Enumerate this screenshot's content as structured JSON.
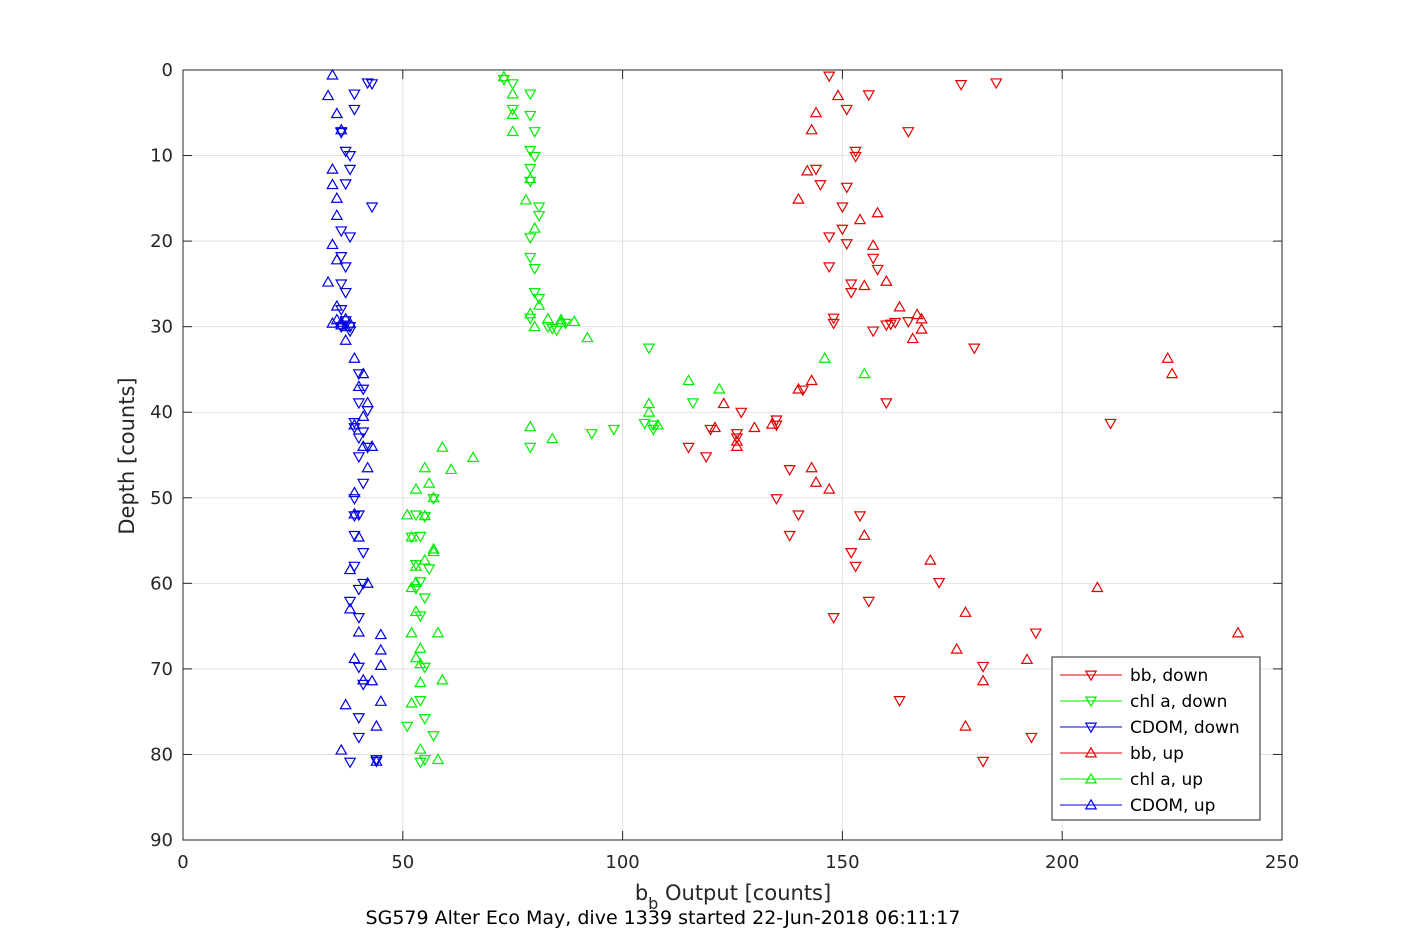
{
  "chart_data": {
    "type": "scatter",
    "xlabel": "b",
    "xlabel_sub": "b",
    "xlabel_rest": " Output [counts]",
    "ylabel": "Depth [counts]",
    "caption": "SG579 Alter Eco May, dive 1339 started 22-Jun-2018 06:11:17",
    "xlim": [
      0,
      250
    ],
    "ylim": [
      0,
      90
    ],
    "y_reversed": true,
    "grid": true,
    "legend_position": "bottom-right",
    "xticks": [
      "0",
      "50",
      "100",
      "150",
      "200",
      "250"
    ],
    "yticks": [
      "0",
      "10",
      "20",
      "30",
      "40",
      "50",
      "60",
      "70",
      "80",
      "90"
    ],
    "series": [
      {
        "name": "bb, down",
        "color": "#e60000",
        "marker": "triangle-down",
        "points": [
          [
            147,
            0.7
          ],
          [
            185,
            1.5
          ],
          [
            177,
            1.7
          ],
          [
            156,
            2.9
          ],
          [
            151,
            4.6
          ],
          [
            165,
            7.2
          ],
          [
            153,
            9.5
          ],
          [
            153,
            10.1
          ],
          [
            144,
            11.6
          ],
          [
            145,
            13.4
          ],
          [
            151,
            13.7
          ],
          [
            150,
            16
          ],
          [
            150,
            18.6
          ],
          [
            147,
            19.5
          ],
          [
            151,
            20.3
          ],
          [
            157,
            22
          ],
          [
            158,
            23.3
          ],
          [
            147,
            23
          ],
          [
            152,
            25
          ],
          [
            152,
            26
          ],
          [
            148,
            29
          ],
          [
            148,
            29.6
          ],
          [
            160,
            29.8
          ],
          [
            161,
            29.7
          ],
          [
            162,
            29.5
          ],
          [
            165,
            29.4
          ],
          [
            157,
            30.5
          ],
          [
            180,
            32.5
          ],
          [
            160,
            38.9
          ],
          [
            141,
            37.4
          ],
          [
            135,
            40.9
          ],
          [
            135,
            41.5
          ],
          [
            127,
            40
          ],
          [
            120,
            42
          ],
          [
            126,
            42.5
          ],
          [
            126,
            43
          ],
          [
            115,
            44.1
          ],
          [
            119,
            45.2
          ],
          [
            138,
            46.7
          ],
          [
            135,
            50.1
          ],
          [
            140,
            52
          ],
          [
            138,
            54.4
          ],
          [
            152,
            56.4
          ],
          [
            153,
            58
          ],
          [
            156,
            62.1
          ],
          [
            148,
            64
          ],
          [
            182,
            69.7
          ],
          [
            163,
            73.7
          ],
          [
            193,
            78
          ],
          [
            182,
            80.8
          ],
          [
            154,
            52.1
          ],
          [
            172,
            59.9
          ],
          [
            194,
            65.8
          ],
          [
            211,
            41.3
          ]
        ]
      },
      {
        "name": "chl a, down",
        "color": "#00ee00",
        "marker": "triangle-down",
        "points": [
          [
            73,
            1.1
          ],
          [
            75,
            1.6
          ],
          [
            79,
            2.8
          ],
          [
            75,
            4.6
          ],
          [
            79,
            5.3
          ],
          [
            80,
            7.2
          ],
          [
            79,
            9.4
          ],
          [
            80,
            10.1
          ],
          [
            79,
            11.5
          ],
          [
            79,
            13
          ],
          [
            81,
            16
          ],
          [
            81,
            17
          ],
          [
            79,
            19.6
          ],
          [
            79,
            21.9
          ],
          [
            80,
            23.2
          ],
          [
            80,
            26
          ],
          [
            81,
            26.7
          ],
          [
            79,
            29
          ],
          [
            83,
            30
          ],
          [
            84,
            30.2
          ],
          [
            85,
            30.4
          ],
          [
            87,
            29.6
          ],
          [
            106,
            32.5
          ],
          [
            116,
            38.9
          ],
          [
            105,
            41.3
          ],
          [
            107,
            41.5
          ],
          [
            107,
            42
          ],
          [
            98,
            42
          ],
          [
            93,
            42.5
          ],
          [
            79,
            44.1
          ],
          [
            53,
            52
          ],
          [
            55,
            52.2
          ],
          [
            54,
            54.5
          ],
          [
            53,
            57.8
          ],
          [
            54,
            59.8
          ],
          [
            53,
            60.6
          ],
          [
            55,
            61.7
          ],
          [
            54,
            63.8
          ],
          [
            55,
            69.8
          ],
          [
            54,
            73.7
          ],
          [
            55,
            75.8
          ],
          [
            57,
            77.8
          ],
          [
            54,
            80.9
          ],
          [
            55,
            80.6
          ],
          [
            51,
            76.7
          ],
          [
            57,
            50.1
          ],
          [
            52,
            54.6
          ],
          [
            56,
            58.3
          ]
        ]
      },
      {
        "name": "CDOM, down",
        "color": "#0000e6",
        "marker": "triangle-down",
        "points": [
          [
            42,
            1.5
          ],
          [
            43,
            1.6
          ],
          [
            39,
            2.8
          ],
          [
            39,
            4.6
          ],
          [
            36,
            7.2
          ],
          [
            36,
            7.3
          ],
          [
            37,
            9.5
          ],
          [
            38,
            10
          ],
          [
            38,
            11.6
          ],
          [
            37,
            13.3
          ],
          [
            43,
            16
          ],
          [
            36,
            18.8
          ],
          [
            38,
            19.5
          ],
          [
            36,
            21.8
          ],
          [
            37,
            23
          ],
          [
            36,
            25
          ],
          [
            37,
            26
          ],
          [
            36,
            28
          ],
          [
            37,
            29.3
          ],
          [
            37,
            29.8
          ],
          [
            36,
            30
          ],
          [
            38,
            30.5
          ],
          [
            40,
            35.5
          ],
          [
            41,
            37.3
          ],
          [
            40,
            38.9
          ],
          [
            42,
            39.8
          ],
          [
            39,
            41.2
          ],
          [
            39,
            41.8
          ],
          [
            41,
            42.3
          ],
          [
            40,
            43
          ],
          [
            42,
            44.1
          ],
          [
            40,
            45.2
          ],
          [
            41,
            48.3
          ],
          [
            39,
            50.1
          ],
          [
            39,
            52.1
          ],
          [
            41,
            56.4
          ],
          [
            39,
            58
          ],
          [
            41,
            60
          ],
          [
            40,
            60.7
          ],
          [
            38,
            62.1
          ],
          [
            40,
            64
          ],
          [
            40,
            69.8
          ],
          [
            41,
            71.8
          ],
          [
            40,
            75.7
          ],
          [
            40,
            78
          ],
          [
            44,
            80.8
          ],
          [
            44,
            80.6
          ],
          [
            38,
            80.9
          ],
          [
            39,
            54.4
          ],
          [
            40,
            52
          ],
          [
            38,
            30
          ]
        ]
      },
      {
        "name": "bb, up",
        "color": "#e60000",
        "marker": "triangle-up",
        "points": [
          [
            149,
            3
          ],
          [
            144,
            5
          ],
          [
            143,
            7
          ],
          [
            142,
            11.8
          ],
          [
            140,
            15.1
          ],
          [
            158,
            16.7
          ],
          [
            154,
            17.5
          ],
          [
            157,
            20.5
          ],
          [
            160,
            24.7
          ],
          [
            155,
            25.2
          ],
          [
            163,
            27.7
          ],
          [
            167,
            28.6
          ],
          [
            168,
            29.1
          ],
          [
            168,
            30.3
          ],
          [
            166,
            31.4
          ],
          [
            224,
            33.7
          ],
          [
            225,
            35.5
          ],
          [
            143,
            36.3
          ],
          [
            140,
            37.3
          ],
          [
            123,
            39
          ],
          [
            121,
            41.8
          ],
          [
            130,
            41.8
          ],
          [
            134,
            41.4
          ],
          [
            126,
            43.4
          ],
          [
            126,
            44
          ],
          [
            143,
            46.5
          ],
          [
            144,
            48.2
          ],
          [
            147,
            49
          ],
          [
            155,
            54.4
          ],
          [
            170,
            57.3
          ],
          [
            178,
            63.4
          ],
          [
            176,
            67.7
          ],
          [
            192,
            68.9
          ],
          [
            182,
            71.4
          ],
          [
            178,
            76.7
          ],
          [
            208,
            60.5
          ],
          [
            240,
            65.8
          ]
        ]
      },
      {
        "name": "chl a, up",
        "color": "#00ee00",
        "marker": "triangle-up",
        "points": [
          [
            73,
            0.8
          ],
          [
            75,
            2.8
          ],
          [
            75,
            5.2
          ],
          [
            75,
            7.2
          ],
          [
            79,
            12.7
          ],
          [
            78,
            15.2
          ],
          [
            80,
            18.5
          ],
          [
            81,
            27.5
          ],
          [
            79,
            28.5
          ],
          [
            80,
            30
          ],
          [
            83,
            29.1
          ],
          [
            86,
            29.2
          ],
          [
            89,
            29.4
          ],
          [
            92,
            31.3
          ],
          [
            86,
            29.5
          ],
          [
            146,
            33.7
          ],
          [
            155,
            35.5
          ],
          [
            115,
            36.3
          ],
          [
            122,
            37.3
          ],
          [
            106,
            39
          ],
          [
            106,
            40
          ],
          [
            108,
            41.5
          ],
          [
            79,
            41.7
          ],
          [
            84,
            43.1
          ],
          [
            59,
            44.1
          ],
          [
            66,
            45.3
          ],
          [
            55,
            46.5
          ],
          [
            61,
            46.7
          ],
          [
            56,
            48.3
          ],
          [
            53,
            49
          ],
          [
            57,
            50
          ],
          [
            51,
            52
          ],
          [
            55,
            52.1
          ],
          [
            52,
            54.6
          ],
          [
            57,
            56.3
          ],
          [
            55,
            57.3
          ],
          [
            53,
            58
          ],
          [
            53,
            59.9
          ],
          [
            52,
            60.5
          ],
          [
            53,
            63.3
          ],
          [
            58,
            65.8
          ],
          [
            52,
            65.8
          ],
          [
            54,
            67.6
          ],
          [
            53,
            68.7
          ],
          [
            54,
            69.4
          ],
          [
            54,
            71.6
          ],
          [
            59,
            71.3
          ],
          [
            52,
            74
          ],
          [
            54,
            79.4
          ],
          [
            58,
            80.6
          ],
          [
            57,
            56
          ]
        ]
      },
      {
        "name": "CDOM, up",
        "color": "#0000e6",
        "marker": "triangle-up",
        "points": [
          [
            34,
            0.6
          ],
          [
            33,
            3
          ],
          [
            35,
            5.1
          ],
          [
            36,
            7
          ],
          [
            34,
            11.6
          ],
          [
            34,
            13.4
          ],
          [
            35,
            15
          ],
          [
            35,
            17
          ],
          [
            34,
            20.4
          ],
          [
            35,
            22.2
          ],
          [
            33,
            24.8
          ],
          [
            35,
            27.6
          ],
          [
            34,
            29.6
          ],
          [
            35,
            29.2
          ],
          [
            36,
            29.5
          ],
          [
            37,
            29.1
          ],
          [
            38,
            29.6
          ],
          [
            36,
            29.8
          ],
          [
            37,
            30
          ],
          [
            37,
            31.6
          ],
          [
            39,
            33.7
          ],
          [
            41,
            35.5
          ],
          [
            40,
            37
          ],
          [
            42,
            38.9
          ],
          [
            41,
            40.5
          ],
          [
            39,
            41.5
          ],
          [
            41,
            44
          ],
          [
            43,
            44
          ],
          [
            42,
            46.5
          ],
          [
            39,
            49.4
          ],
          [
            39,
            51.9
          ],
          [
            40,
            54.6
          ],
          [
            38,
            58.4
          ],
          [
            42,
            60
          ],
          [
            38,
            63
          ],
          [
            45,
            66
          ],
          [
            40,
            65.7
          ],
          [
            45,
            67.8
          ],
          [
            45,
            69.6
          ],
          [
            39,
            68.8
          ],
          [
            41,
            71.3
          ],
          [
            43,
            71.4
          ],
          [
            45,
            73.8
          ],
          [
            37,
            74.2
          ],
          [
            44,
            76.7
          ],
          [
            36,
            79.5
          ],
          [
            44,
            80.8
          ]
        ]
      }
    ]
  }
}
